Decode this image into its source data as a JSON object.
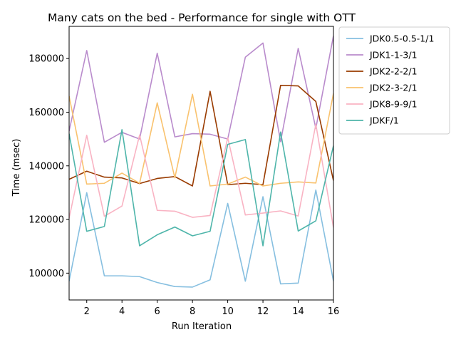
{
  "chart_data": {
    "type": "line",
    "title": "Many cats on the bed - Performance for single with OTT",
    "xlabel": "Run Iteration",
    "ylabel": "Time (msec)",
    "xlim": [
      1,
      16
    ],
    "ylim": [
      90000,
      192000
    ],
    "x": [
      1,
      2,
      3,
      4,
      5,
      6,
      7,
      8,
      9,
      10,
      11,
      12,
      13,
      14,
      15,
      16
    ],
    "xticks": [
      2,
      4,
      6,
      8,
      10,
      12,
      14,
      16
    ],
    "xtick_labels": [
      "2",
      "4",
      "6",
      "8",
      "10",
      "12",
      "14",
      "16"
    ],
    "yticks": [
      100000,
      120000,
      140000,
      160000,
      180000
    ],
    "ytick_labels": [
      "100000",
      "120000",
      "140000",
      "160000",
      "180000"
    ],
    "grid": false,
    "legend_position": "outside-top-right",
    "series": [
      {
        "name": "JDK0.5-0.5-1/1",
        "color": "#86bfe0",
        "values": [
          97000,
          130000,
          99000,
          99000,
          98700,
          96500,
          95000,
          94800,
          97500,
          126000,
          97000,
          128500,
          96000,
          96300,
          131000,
          97000
        ]
      },
      {
        "name": "JDK1-1-3/1",
        "color": "#b98bcc",
        "values": [
          153000,
          183000,
          148800,
          152500,
          150000,
          182000,
          150800,
          152000,
          151800,
          150000,
          180500,
          185800,
          149000,
          183800,
          154000,
          188500
        ]
      },
      {
        "name": "JDK2-2-2/1",
        "color": "#993b00",
        "values": [
          135000,
          138000,
          135800,
          135500,
          133400,
          135300,
          136000,
          132500,
          167800,
          133000,
          133500,
          133000,
          170000,
          169800,
          164000,
          134500
        ]
      },
      {
        "name": "JDK2-3-2/1",
        "color": "#f9c26e",
        "values": [
          166000,
          133200,
          133500,
          137300,
          133500,
          163500,
          135500,
          166700,
          132500,
          133200,
          135800,
          132500,
          133500,
          134000,
          133600,
          167000
        ]
      },
      {
        "name": "JDK8-9-9/1",
        "color": "#f9b3c3",
        "values": [
          120500,
          151400,
          121200,
          125000,
          151500,
          123400,
          123100,
          120800,
          121500,
          150500,
          121700,
          122400,
          123200,
          121300,
          155500,
          117000
        ]
      },
      {
        "name": "JDKF/1",
        "color": "#4eb5aa",
        "values": [
          152000,
          115600,
          117400,
          153500,
          110200,
          114300,
          117200,
          113900,
          115600,
          148000,
          149800,
          110200,
          152600,
          115700,
          119500,
          147500
        ]
      }
    ]
  }
}
